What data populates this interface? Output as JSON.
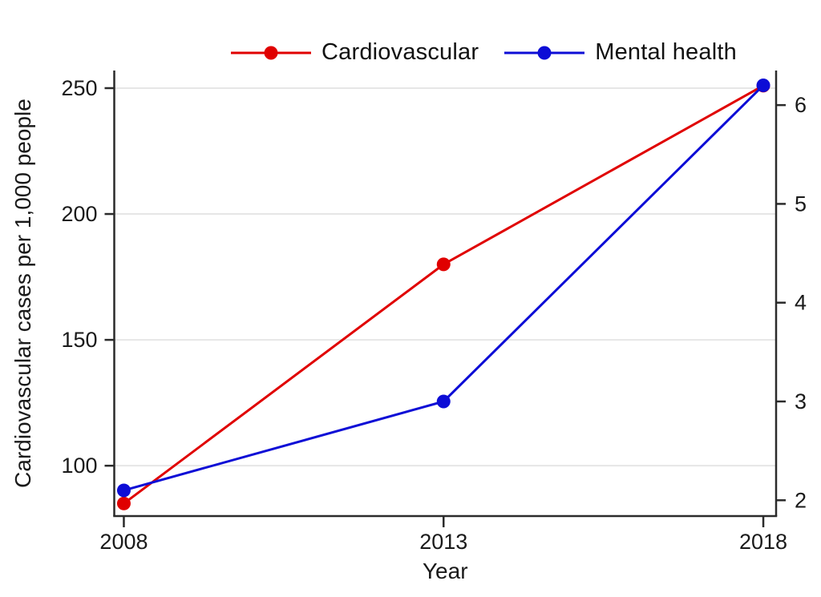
{
  "chart_data": {
    "type": "line",
    "title": "",
    "x": [
      2008,
      2013,
      2018
    ],
    "series": [
      {
        "name": "Cardiovascular",
        "axis": "left",
        "color": "#e00000",
        "values": [
          85,
          180,
          251
        ]
      },
      {
        "name": "Mental health",
        "axis": "right",
        "color": "#0d0dd6",
        "values": [
          2.1,
          3.0,
          6.2
        ]
      }
    ],
    "x_axis": {
      "label": "Year",
      "ticks": [
        2008,
        2013,
        2018
      ],
      "range": [
        2007.85,
        2018.2
      ]
    },
    "left_axis": {
      "label": "Cardiovascular cases per 1,000 people",
      "ticks": [
        100,
        150,
        200,
        250
      ],
      "range": [
        80,
        257
      ]
    },
    "right_axis": {
      "label": "",
      "ticks": [
        2,
        3,
        4,
        5,
        6
      ],
      "range": [
        1.84,
        6.35
      ]
    },
    "legend": {
      "position": "top-center"
    },
    "grid": "horizontal gridlines at left-axis ticks only",
    "colors": {
      "grid": "#e6e6e6",
      "axis": "#2b2b2b",
      "text": "#1a1a1a",
      "background": "#ffffff"
    }
  }
}
